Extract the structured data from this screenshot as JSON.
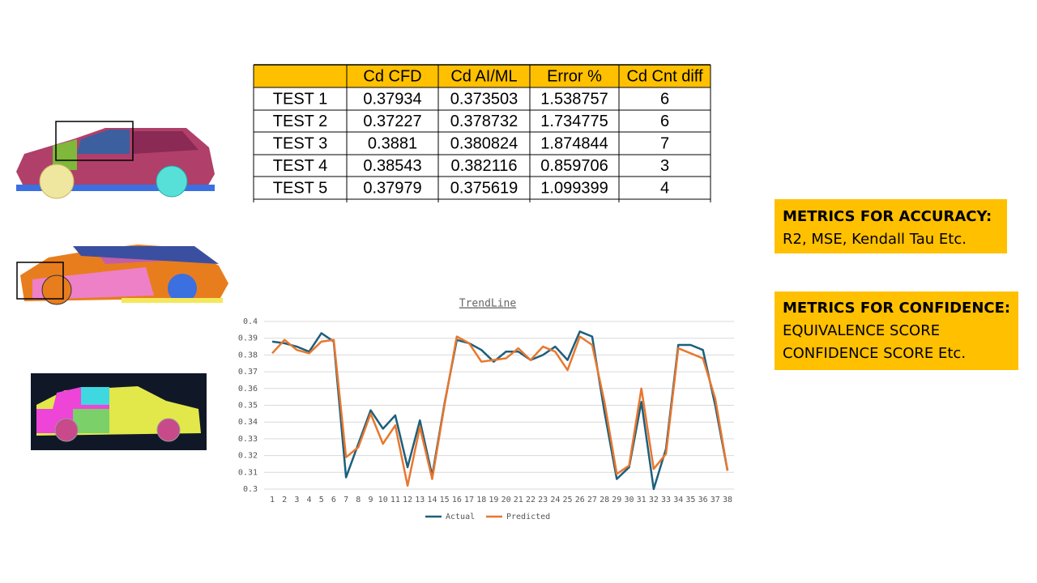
{
  "table": {
    "columns": [
      "Cd CFD",
      "Cd AI/ML",
      "Error %",
      "Cd Cnt diff"
    ],
    "rows": [
      [
        "TEST 1",
        "0.37934",
        "0.373503",
        "1.538757",
        "6"
      ],
      [
        "TEST 2",
        "0.37227",
        "0.378732",
        "1.734775",
        "6"
      ],
      [
        "TEST 3",
        "0.3881",
        "0.380824",
        "1.874844",
        "7"
      ],
      [
        "TEST 4",
        "0.38543",
        "0.382116",
        "0.859706",
        "3"
      ],
      [
        "TEST 5",
        "0.37979",
        "0.375619",
        "1.099399",
        "4"
      ]
    ]
  },
  "accuracy": {
    "title": "METRICS FOR ACCURACY:",
    "body": "R2, MSE, Kendall Tau Etc."
  },
  "confidence": {
    "title": "METRICS FOR CONFIDENCE:",
    "lines": [
      "EQUIVALENCE SCORE",
      "CONFIDENCE SCORE Etc."
    ]
  },
  "chart_data": {
    "type": "line",
    "title": "TrendLine",
    "categories": [
      "1",
      "2",
      "3",
      "4",
      "5",
      "6",
      "7",
      "8",
      "9",
      "10",
      "11",
      "12",
      "13",
      "14",
      "15",
      "16",
      "17",
      "18",
      "19",
      "20",
      "21",
      "22",
      "23",
      "24",
      "25",
      "26",
      "27",
      "28",
      "29",
      "30",
      "31",
      "32",
      "33",
      "34",
      "35",
      "36",
      "37",
      "38"
    ],
    "series": [
      {
        "name": "Actual",
        "color": "#1d5f7c",
        "values": [
          0.388,
          0.387,
          0.385,
          0.382,
          0.393,
          0.388,
          0.307,
          0.327,
          0.347,
          0.336,
          0.344,
          0.313,
          0.341,
          0.308,
          0.351,
          0.389,
          0.387,
          0.383,
          0.376,
          0.382,
          0.382,
          0.377,
          0.38,
          0.385,
          0.377,
          0.394,
          0.391,
          0.346,
          0.306,
          0.313,
          0.352,
          0.3,
          0.324,
          0.386,
          0.386,
          0.383,
          0.35,
          0.311
        ]
      },
      {
        "name": "Predicted",
        "color": "#e8772e",
        "values": [
          0.381,
          0.389,
          0.383,
          0.381,
          0.388,
          0.389,
          0.319,
          0.325,
          0.345,
          0.327,
          0.338,
          0.302,
          0.337,
          0.306,
          0.35,
          0.391,
          0.387,
          0.376,
          0.377,
          0.378,
          0.384,
          0.377,
          0.385,
          0.382,
          0.371,
          0.391,
          0.386,
          0.352,
          0.309,
          0.314,
          0.36,
          0.312,
          0.321,
          0.384,
          0.381,
          0.378,
          0.354,
          0.311
        ]
      }
    ],
    "ylim": [
      0.3,
      0.4
    ],
    "yticks": [
      0.3,
      0.31,
      0.32,
      0.33,
      0.34,
      0.35,
      0.36,
      0.37,
      0.38,
      0.39,
      0.4
    ],
    "grid": true,
    "legend": "bottom"
  }
}
